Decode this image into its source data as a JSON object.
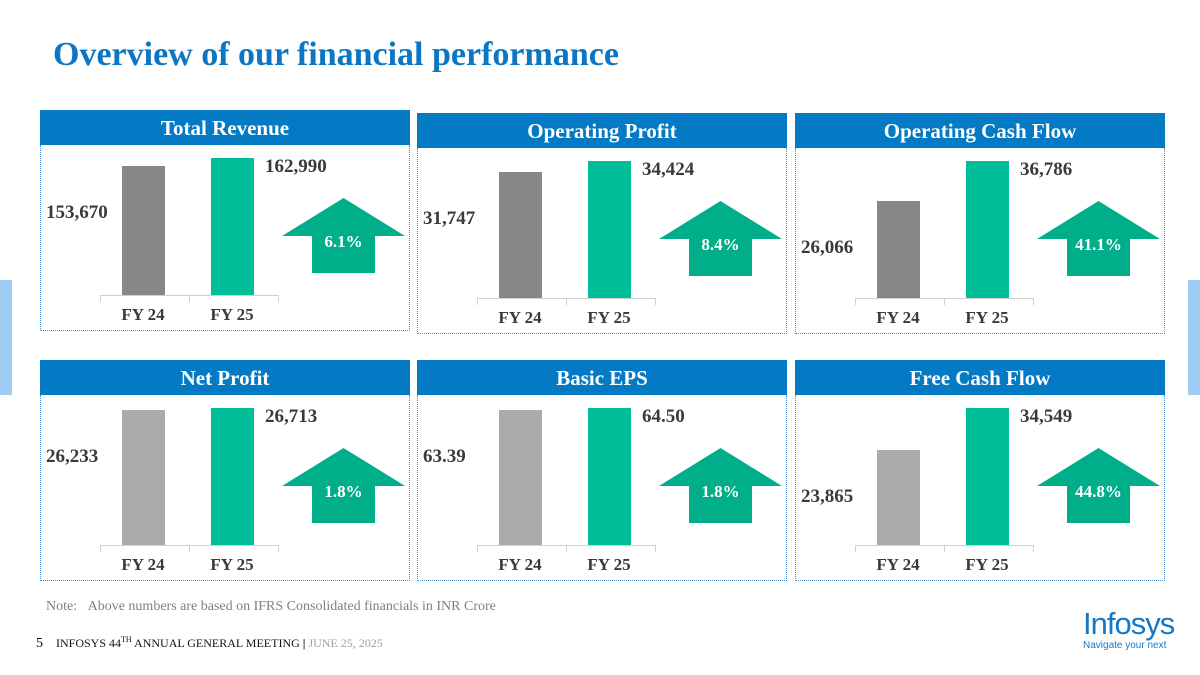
{
  "title": "Overview of our financial performance",
  "colors": {
    "header": "#0479C4",
    "fy24_row1": "#878787",
    "fy24_row2": "#ABABAB",
    "fy25": "#00BF98",
    "arrow": "#00AE8A"
  },
  "chart_data": [
    {
      "type": "bar",
      "title": "Total Revenue",
      "categories": [
        "FY 24",
        "FY 25"
      ],
      "values": [
        153670,
        162990
      ],
      "labels": [
        "153,670",
        "162,990"
      ],
      "growth": "6.1%"
    },
    {
      "type": "bar",
      "title": "Operating Profit",
      "categories": [
        "FY 24",
        "FY 25"
      ],
      "values": [
        31747,
        34424
      ],
      "labels": [
        "31,747",
        "34,424"
      ],
      "growth": "8.4%"
    },
    {
      "type": "bar",
      "title": "Operating Cash Flow",
      "categories": [
        "FY 24",
        "FY 25"
      ],
      "values": [
        26066,
        36786
      ],
      "labels": [
        "26,066",
        "36,786"
      ],
      "growth": "41.1%"
    },
    {
      "type": "bar",
      "title": "Net Profit",
      "categories": [
        "FY 24",
        "FY 25"
      ],
      "values": [
        26233,
        26713
      ],
      "labels": [
        "26,233",
        "26,713"
      ],
      "growth": "1.8%"
    },
    {
      "type": "bar",
      "title": "Basic EPS",
      "categories": [
        "FY 24",
        "FY 25"
      ],
      "values": [
        63.39,
        64.5
      ],
      "labels": [
        "63.39",
        "64.50"
      ],
      "growth": "1.8%"
    },
    {
      "type": "bar",
      "title": "Free Cash Flow",
      "categories": [
        "FY 24",
        "FY 25"
      ],
      "values": [
        23865,
        34549
      ],
      "labels": [
        "23,865",
        "34,549"
      ],
      "growth": "44.8%"
    }
  ],
  "note": {
    "label": "Note:",
    "text": "Above numbers are based on IFRS Consolidated financials in INR Crore"
  },
  "footer": {
    "page": "5",
    "event_prefix": "INFOSYS 44",
    "event_sup": "TH",
    "event_suffix": " ANNUAL GENERAL MEETING",
    "separator": "|",
    "date": "JUNE 25, 2025"
  },
  "logo": {
    "name": "Infosys",
    "tagline": "Navigate your next"
  }
}
